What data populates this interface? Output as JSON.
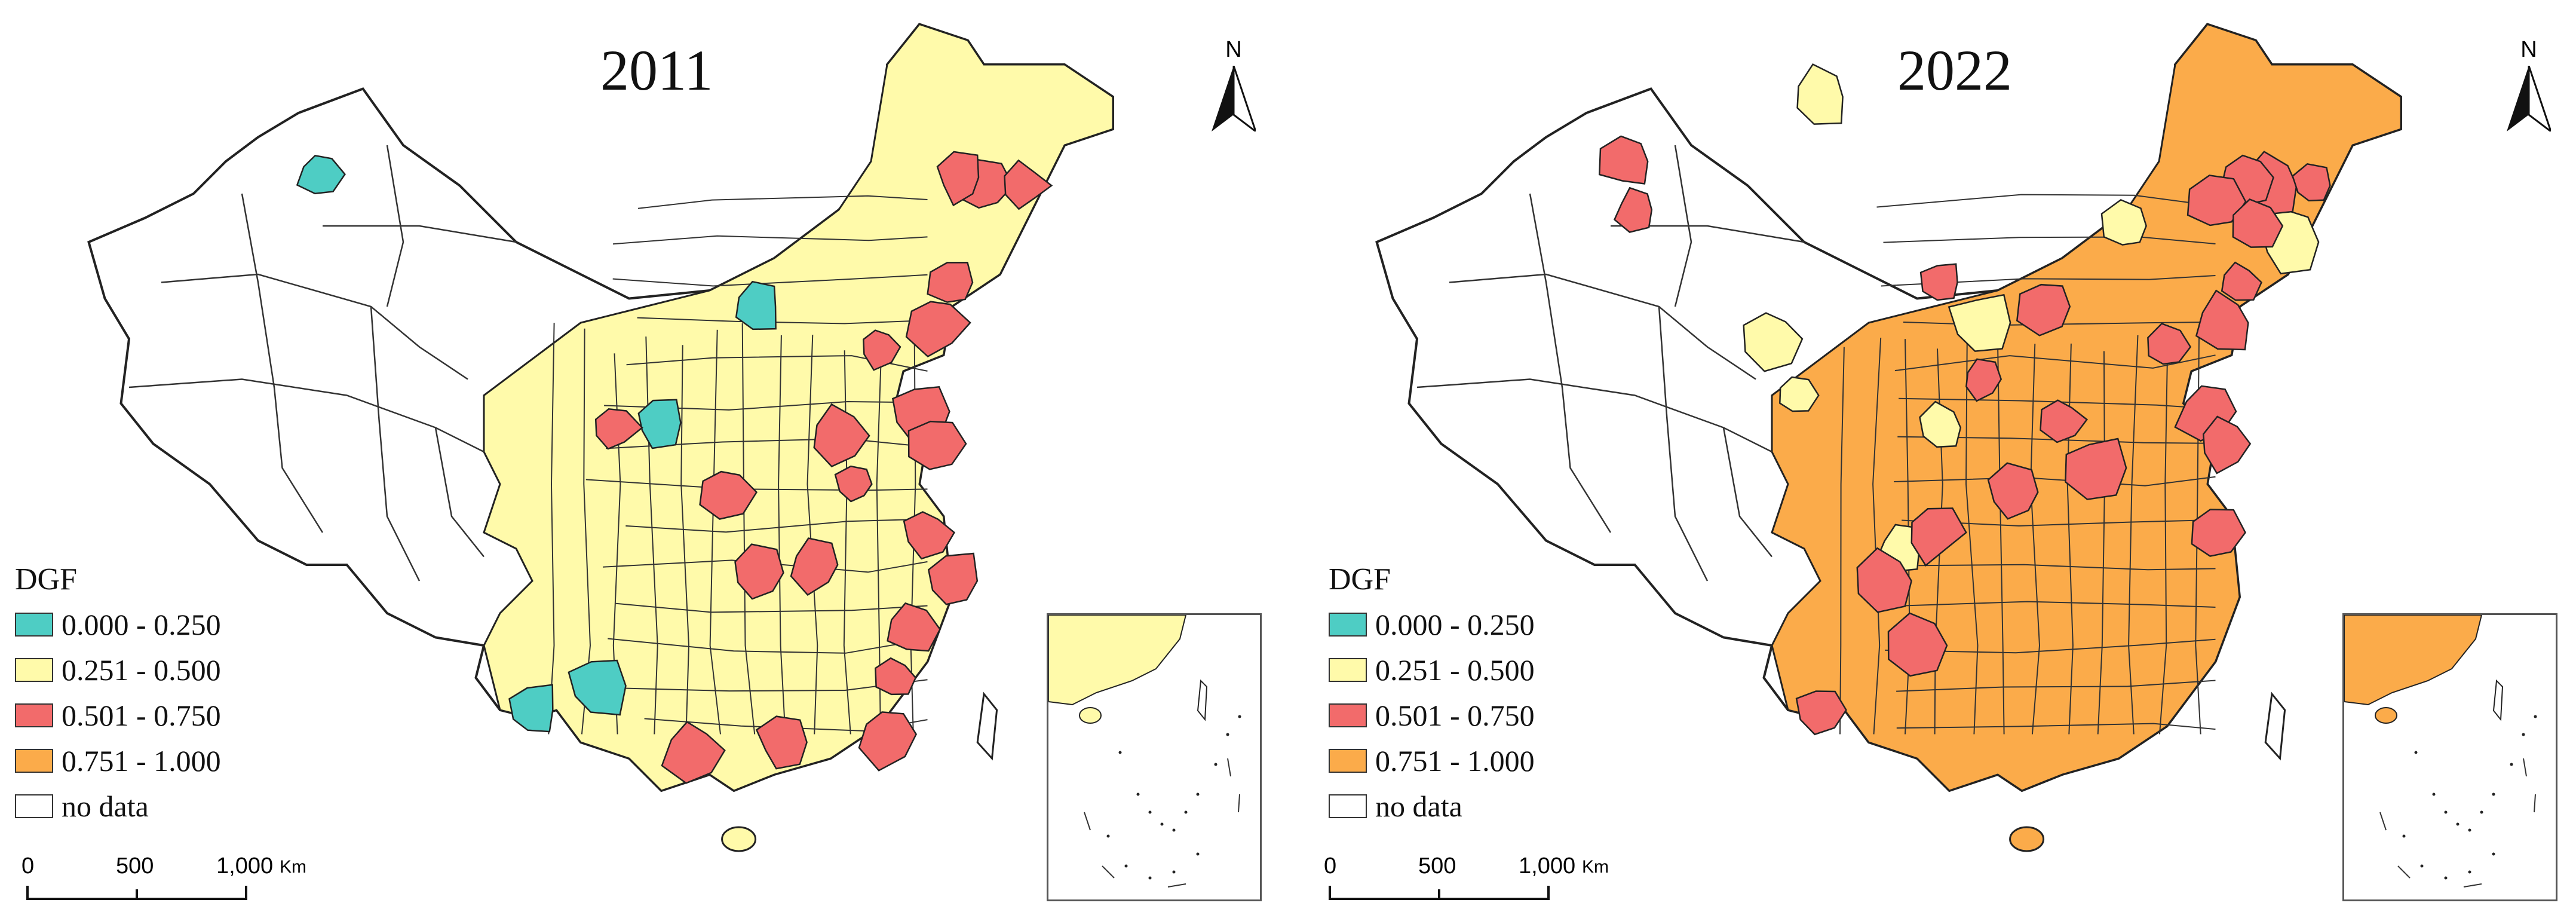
{
  "maps": [
    {
      "year": "2011",
      "north": "N",
      "fill_counts": {
        "teal": 5,
        "yellow": 60,
        "red": 30,
        "orange": 0
      },
      "main_fill": "#FFFAAA"
    },
    {
      "year": "2022",
      "north": "N",
      "fill_counts": {
        "teal": 0,
        "yellow": 8,
        "red": 25,
        "orange": 70
      },
      "main_fill": "#FBAB4A"
    }
  ],
  "legend": {
    "title": "DGF",
    "classes": [
      {
        "label": "0.000 - 0.250",
        "color": "#4ECDC4"
      },
      {
        "label": "0.251 - 0.500",
        "color": "#FFFAAA"
      },
      {
        "label": "0.501 - 0.750",
        "color": "#F26B6B"
      },
      {
        "label": "0.751 - 1.000",
        "color": "#FBAB4A"
      },
      {
        "label": "no data",
        "color": "#FFFFFF"
      }
    ]
  },
  "scale_bar": {
    "ticks": [
      "0",
      "500",
      "1,000"
    ],
    "unit": "Km"
  }
}
